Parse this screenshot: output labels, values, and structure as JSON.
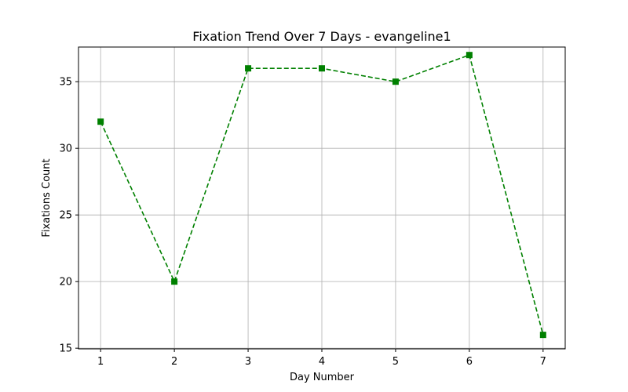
{
  "chart_data": {
    "type": "line",
    "title": "Fixation Trend Over 7 Days - evangeline1",
    "xlabel": "Day Number",
    "ylabel": "Fixations Count",
    "x": [
      1,
      2,
      3,
      4,
      5,
      6,
      7
    ],
    "series": [
      {
        "values": [
          32,
          20,
          36,
          36,
          35,
          37,
          16
        ],
        "color": "#008000",
        "line_style": "dashed",
        "marker": "square"
      }
    ],
    "xlim": [
      0.7,
      7.3
    ],
    "ylim": [
      14.95,
      37.6
    ],
    "x_ticks": [
      1,
      2,
      3,
      4,
      5,
      6,
      7
    ],
    "y_ticks": [
      15,
      20,
      25,
      30,
      35
    ],
    "grid": true
  }
}
